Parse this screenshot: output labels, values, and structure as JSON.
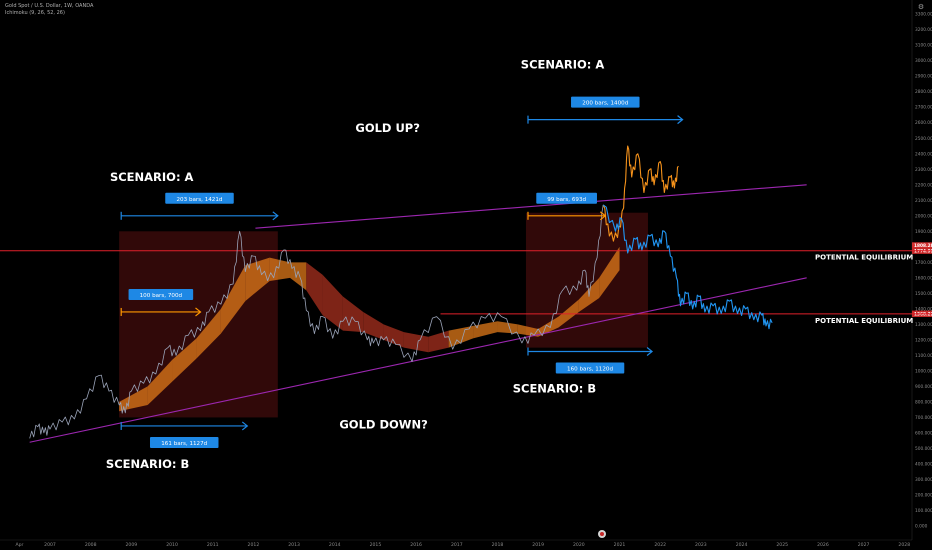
{
  "header": {
    "symbol_line": "Gold Spot / U.S. Dollar, 1W, OANDA",
    "indicator_line": "Ichimoku (9, 26, 52, 26)"
  },
  "colors": {
    "background": "#000000",
    "price_history": "#9aa3b8",
    "scenario_up": "#f5921b",
    "scenario_down": "#2196f3",
    "trendline": "#9c27b0",
    "equilibrium": "#e0202a",
    "cloud_bull": "#e07a1a",
    "cloud_bear": "#a8301f",
    "box": "#3a0b0b",
    "measure_blue": "#1e88e5",
    "measure_orange": "#ff9800"
  },
  "chart_data": {
    "type": "line",
    "x_axis": {
      "ticks": [
        "Apr",
        "2007",
        "2008",
        "2009",
        "2010",
        "2011",
        "2012",
        "2013",
        "2014",
        "2015",
        "2016",
        "2017",
        "2018",
        "2019",
        "2020",
        "2021",
        "2022",
        "2023",
        "2024",
        "2025",
        "2026",
        "2027",
        "2028"
      ]
    },
    "y_axis": {
      "range": [
        0,
        3300
      ],
      "ticks": [
        "3300.000",
        "3200.000",
        "3100.000",
        "3000.000",
        "2900.000",
        "2800.000",
        "2700.000",
        "2600.000",
        "2500.000",
        "2400.000",
        "2300.000",
        "2200.000",
        "2100.000",
        "2000.000",
        "1900.000",
        "1800.000",
        "1700.000",
        "1600.000",
        "1500.000",
        "1400.000",
        "1300.000",
        "1200.000",
        "1100.000",
        "1000.000",
        "900.000",
        "800.000",
        "700.000",
        "600.000",
        "500.000",
        "400.000",
        "300.000",
        "200.000",
        "100.000",
        "0.000"
      ],
      "price_tags": [
        "1808.284",
        "1774.998",
        "1368.229"
      ]
    },
    "series": [
      {
        "key": "history",
        "points": [
          [
            2006.5,
            565
          ],
          [
            2006.7,
            640
          ],
          [
            2006.85,
            600
          ],
          [
            2007.0,
            625
          ],
          [
            2007.3,
            670
          ],
          [
            2007.6,
            690
          ],
          [
            2007.9,
            820
          ],
          [
            2008.2,
            970
          ],
          [
            2008.45,
            870
          ],
          [
            2008.7,
            780
          ],
          [
            2008.85,
            730
          ],
          [
            2009.0,
            870
          ],
          [
            2009.3,
            920
          ],
          [
            2009.6,
            980
          ],
          [
            2009.9,
            1150
          ],
          [
            2010.1,
            1100
          ],
          [
            2010.4,
            1230
          ],
          [
            2010.7,
            1260
          ],
          [
            2010.9,
            1380
          ],
          [
            2011.2,
            1430
          ],
          [
            2011.5,
            1560
          ],
          [
            2011.66,
            1900
          ],
          [
            2011.8,
            1640
          ],
          [
            2012.0,
            1740
          ],
          [
            2012.2,
            1620
          ],
          [
            2012.5,
            1600
          ],
          [
            2012.75,
            1780
          ],
          [
            2012.95,
            1660
          ],
          [
            2013.15,
            1600
          ],
          [
            2013.3,
            1390
          ],
          [
            2013.5,
            1240
          ],
          [
            2013.7,
            1350
          ],
          [
            2013.95,
            1210
          ],
          [
            2014.2,
            1320
          ],
          [
            2014.5,
            1320
          ],
          [
            2014.8,
            1200
          ],
          [
            2014.95,
            1180
          ],
          [
            2015.2,
            1200
          ],
          [
            2015.5,
            1170
          ],
          [
            2015.9,
            1060
          ],
          [
            2016.1,
            1200
          ],
          [
            2016.5,
            1350
          ],
          [
            2016.9,
            1140
          ],
          [
            2017.3,
            1270
          ],
          [
            2017.7,
            1340
          ],
          [
            2018.1,
            1350
          ],
          [
            2018.6,
            1180
          ],
          [
            2018.9,
            1230
          ],
          [
            2019.3,
            1280
          ],
          [
            2019.6,
            1520
          ],
          [
            2019.95,
            1520
          ],
          [
            2020.15,
            1650
          ],
          [
            2020.25,
            1480
          ],
          [
            2020.45,
            1730
          ],
          [
            2020.6,
            2070
          ]
        ]
      },
      {
        "key": "scenario_up",
        "points": [
          [
            2020.6,
            2070
          ],
          [
            2020.75,
            1870
          ],
          [
            2020.95,
            1860
          ],
          [
            2021.1,
            2050
          ],
          [
            2021.2,
            2450
          ],
          [
            2021.3,
            2250
          ],
          [
            2021.45,
            2400
          ],
          [
            2021.6,
            2150
          ],
          [
            2021.75,
            2300
          ],
          [
            2021.85,
            2200
          ],
          [
            2022.0,
            2350
          ],
          [
            2022.1,
            2150
          ],
          [
            2022.25,
            2250
          ],
          [
            2022.35,
            2180
          ],
          [
            2022.45,
            2320
          ]
        ]
      },
      {
        "key": "scenario_down",
        "points": [
          [
            2020.6,
            2070
          ],
          [
            2020.9,
            1900
          ],
          [
            2021.05,
            1980
          ],
          [
            2021.2,
            1760
          ],
          [
            2021.4,
            1850
          ],
          [
            2021.55,
            1780
          ],
          [
            2021.75,
            1870
          ],
          [
            2021.95,
            1800
          ],
          [
            2022.1,
            1900
          ],
          [
            2022.25,
            1740
          ],
          [
            2022.4,
            1600
          ],
          [
            2022.5,
            1420
          ],
          [
            2022.65,
            1500
          ],
          [
            2022.8,
            1400
          ],
          [
            2022.95,
            1480
          ],
          [
            2023.1,
            1380
          ],
          [
            2023.3,
            1420
          ],
          [
            2023.5,
            1370
          ],
          [
            2023.7,
            1450
          ],
          [
            2023.9,
            1370
          ],
          [
            2024.1,
            1400
          ],
          [
            2024.3,
            1330
          ],
          [
            2024.5,
            1360
          ],
          [
            2024.6,
            1290
          ],
          [
            2024.75,
            1310
          ]
        ]
      }
    ],
    "ichimoku_cloud": [
      {
        "x": 2008.7,
        "low": 740,
        "high": 800,
        "trend": "bull"
      },
      {
        "x": 2009.4,
        "low": 780,
        "high": 900,
        "trend": "bull"
      },
      {
        "x": 2010.0,
        "low": 930,
        "high": 1070,
        "trend": "bull"
      },
      {
        "x": 2010.6,
        "low": 1080,
        "high": 1210,
        "trend": "bull"
      },
      {
        "x": 2011.2,
        "low": 1240,
        "high": 1400,
        "trend": "bull"
      },
      {
        "x": 2011.8,
        "low": 1450,
        "high": 1680,
        "trend": "bull"
      },
      {
        "x": 2012.4,
        "low": 1580,
        "high": 1730,
        "trend": "bull"
      },
      {
        "x": 2012.9,
        "low": 1600,
        "high": 1700,
        "trend": "bull"
      },
      {
        "x": 2013.3,
        "low": 1520,
        "high": 1700,
        "trend": "bear"
      },
      {
        "x": 2013.7,
        "low": 1360,
        "high": 1620,
        "trend": "bear"
      },
      {
        "x": 2014.2,
        "low": 1260,
        "high": 1480,
        "trend": "bear"
      },
      {
        "x": 2014.7,
        "low": 1250,
        "high": 1380,
        "trend": "bear"
      },
      {
        "x": 2015.2,
        "low": 1200,
        "high": 1300,
        "trend": "bear"
      },
      {
        "x": 2015.7,
        "low": 1150,
        "high": 1250,
        "trend": "bear"
      },
      {
        "x": 2016.3,
        "low": 1120,
        "high": 1220,
        "trend": "bear"
      },
      {
        "x": 2016.8,
        "low": 1150,
        "high": 1260,
        "trend": "bull"
      },
      {
        "x": 2017.4,
        "low": 1210,
        "high": 1290,
        "trend": "bull"
      },
      {
        "x": 2018.0,
        "low": 1250,
        "high": 1320,
        "trend": "bull"
      },
      {
        "x": 2018.5,
        "low": 1240,
        "high": 1300,
        "trend": "bull"
      },
      {
        "x": 2019.0,
        "low": 1220,
        "high": 1270,
        "trend": "bull"
      },
      {
        "x": 2019.5,
        "low": 1280,
        "high": 1350,
        "trend": "bull"
      },
      {
        "x": 2020.0,
        "low": 1380,
        "high": 1460,
        "trend": "bull"
      },
      {
        "x": 2020.5,
        "low": 1470,
        "high": 1600,
        "trend": "bull"
      },
      {
        "x": 2021.0,
        "low": 1650,
        "high": 1800,
        "trend": "bull"
      }
    ],
    "trendlines": [
      {
        "key": "upper",
        "x1": 2012.05,
        "y1": 1920,
        "x2": 2025.6,
        "y2": 2200
      },
      {
        "key": "lower",
        "x1": 2006.5,
        "y1": 540,
        "x2": 2025.6,
        "y2": 1600
      }
    ],
    "equilibrium_lines": [
      {
        "key": "eq1",
        "y": 1775,
        "x1": 2005.3,
        "x2": 2029.0,
        "label": "POTENTIAL EQUILIBRIUM"
      },
      {
        "key": "eq2",
        "y": 1368,
        "x1": 2016.6,
        "x2": 2029.0,
        "label": "POTENTIAL EQUILIBRIUM"
      }
    ],
    "boxes": [
      {
        "x1": 2008.7,
        "y1": 1900,
        "x2": 2012.6,
        "y2": 700
      },
      {
        "x1": 2018.7,
        "y1": 2020,
        "x2": 2021.7,
        "y2": 1150
      }
    ],
    "measurements": [
      {
        "key": "m1",
        "x1": 2008.75,
        "x2": 2012.6,
        "y": 2000,
        "label": "203 bars, 1421d",
        "color": "blue"
      },
      {
        "key": "m2",
        "x1": 2008.75,
        "x2": 2010.7,
        "y": 1380,
        "label": "100 bars, 700d",
        "color": "orange"
      },
      {
        "key": "m3",
        "x1": 2008.75,
        "x2": 2011.85,
        "y": 645,
        "label": "161 bars, 1127d",
        "color": "blue"
      },
      {
        "key": "m4",
        "x1": 2018.75,
        "x2": 2020.65,
        "y": 2000,
        "label": "99 bars, 693d",
        "color": "orange"
      },
      {
        "key": "m5",
        "x1": 2018.75,
        "x2": 2022.55,
        "y": 2620,
        "label": "200 bars, 1400d",
        "color": "blue"
      },
      {
        "key": "m6",
        "x1": 2018.75,
        "x2": 2021.8,
        "y": 1125,
        "label": "160 bars, 1120d",
        "color": "blue"
      }
    ],
    "annotations": [
      {
        "key": "a1",
        "text": "SCENARIO: A",
        "x": 2009.5,
        "y": 2225
      },
      {
        "key": "a2",
        "text": "GOLD UP?",
        "x": 2015.3,
        "y": 2540
      },
      {
        "key": "a3",
        "text": "SCENARIO: A",
        "x": 2019.6,
        "y": 2950
      },
      {
        "key": "a4",
        "text": "GOLD DOWN?",
        "x": 2015.2,
        "y": 630
      },
      {
        "key": "a5",
        "text": "SCENARIO: B",
        "x": 2009.4,
        "y": 375
      },
      {
        "key": "a6",
        "text": "SCENARIO: B",
        "x": 2019.4,
        "y": 860
      }
    ]
  }
}
